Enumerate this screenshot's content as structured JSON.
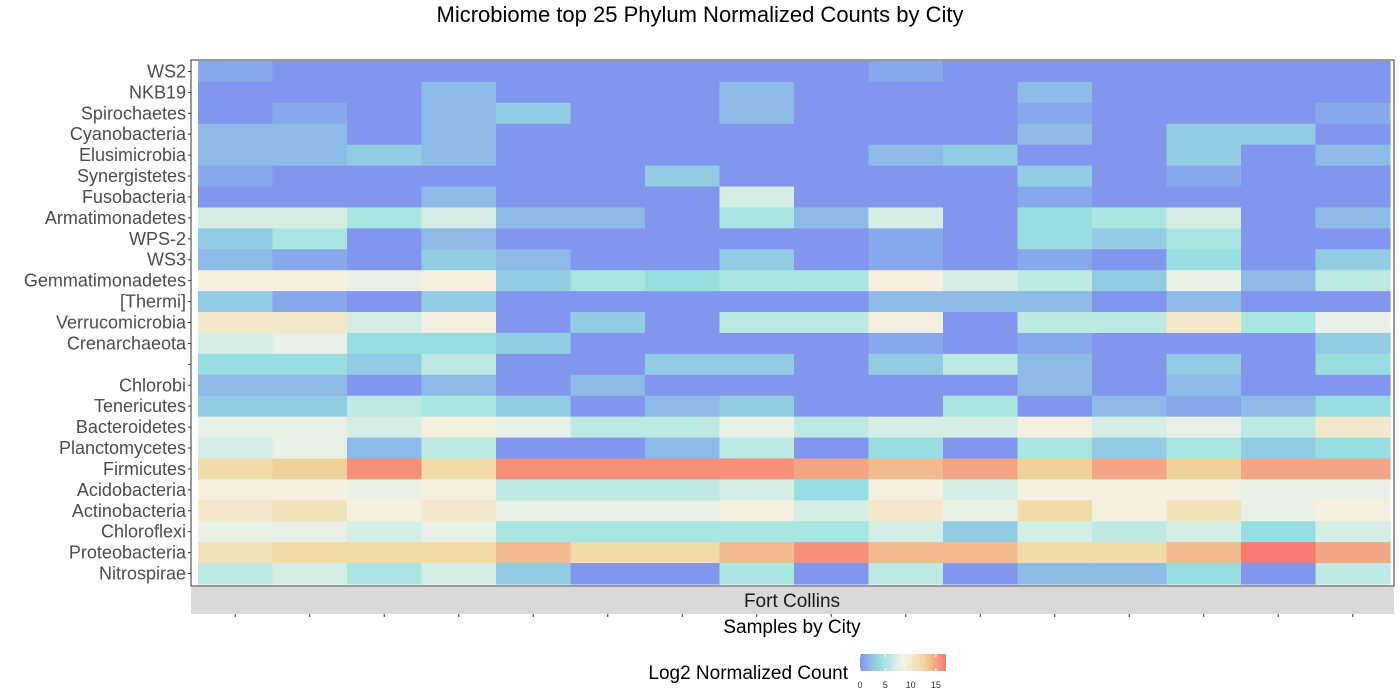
{
  "chart_data": {
    "type": "heatmap",
    "title": "Microbiome top 25 Phylum Normalized Counts by City",
    "xlabel": "Samples by City",
    "facet": "Fort Collins",
    "legend_title": "Log2 Normalized Count",
    "legend_ticks": [
      0,
      5,
      10,
      15
    ],
    "legend_placement": "bottom",
    "color_range": [
      0,
      17
    ],
    "colors": [
      "#8296ee",
      "#99e3df",
      "#f4f2e8",
      "#f0d69a",
      "#f87a72"
    ],
    "n_samples": 16,
    "rows": [
      {
        "label": "WS2",
        "values": [
          1,
          0,
          0,
          0,
          0,
          0,
          0,
          0,
          0,
          1,
          0,
          0,
          0,
          0,
          0,
          0
        ]
      },
      {
        "label": "NKB19",
        "values": [
          0,
          0,
          0,
          2,
          0,
          0,
          0,
          2,
          0,
          0,
          0,
          2,
          0,
          0,
          0,
          0
        ]
      },
      {
        "label": "Spirochaetes",
        "values": [
          0,
          1,
          0,
          2,
          3,
          0,
          0,
          2,
          0,
          0,
          0,
          1,
          0,
          0,
          0,
          1
        ]
      },
      {
        "label": "Cyanobacteria",
        "values": [
          2,
          2,
          0,
          2,
          0,
          0,
          0,
          0,
          0,
          0,
          0,
          2,
          0,
          3,
          3,
          0
        ]
      },
      {
        "label": "Elusimicrobia",
        "values": [
          2,
          2,
          3,
          2,
          0,
          0,
          0,
          0,
          0,
          2,
          3,
          0,
          0,
          3,
          0,
          2
        ]
      },
      {
        "label": "Synergistetes",
        "values": [
          1,
          0,
          0,
          0,
          0,
          0,
          3,
          0,
          0,
          0,
          0,
          3,
          0,
          1,
          0,
          0
        ]
      },
      {
        "label": "Fusobacteria",
        "values": [
          0,
          0,
          0,
          2,
          0,
          0,
          0,
          7,
          0,
          0,
          0,
          1,
          0,
          0,
          0,
          0
        ]
      },
      {
        "label": "Armatimonadetes",
        "values": [
          7,
          7,
          5,
          7,
          2,
          2,
          0,
          5,
          2,
          7,
          0,
          4,
          5,
          7,
          0,
          2
        ]
      },
      {
        "label": "WPS-2",
        "values": [
          3,
          5,
          0,
          2,
          0,
          0,
          0,
          0,
          0,
          1,
          0,
          4,
          3,
          5,
          0,
          0
        ]
      },
      {
        "label": "WS3",
        "values": [
          2,
          1,
          0,
          3,
          2,
          0,
          0,
          3,
          0,
          1,
          0,
          1,
          0,
          4,
          0,
          3
        ]
      },
      {
        "label": "Gemmatimonadetes",
        "values": [
          9,
          9,
          8,
          9,
          3,
          5,
          4,
          5,
          5,
          9,
          7,
          6,
          3,
          8,
          2,
          6
        ]
      },
      {
        "label": "[Thermi]",
        "values": [
          3,
          1,
          0,
          3,
          0,
          0,
          0,
          0,
          0,
          2,
          2,
          2,
          0,
          2,
          0,
          0
        ]
      },
      {
        "label": "Verrucomicrobia",
        "values": [
          10,
          10,
          7,
          9,
          0,
          3,
          0,
          6,
          6,
          9,
          0,
          6,
          6,
          10,
          5,
          8
        ]
      },
      {
        "label": "Crenarchaeota",
        "values": [
          7,
          8,
          4,
          4,
          3,
          0,
          0,
          0,
          0,
          1,
          0,
          1,
          0,
          0,
          0,
          3
        ]
      },
      {
        "label": "",
        "values": [
          4,
          4,
          3,
          6,
          0,
          0,
          3,
          3,
          0,
          3,
          6,
          2,
          0,
          3,
          0,
          4
        ]
      },
      {
        "label": "Chlorobi",
        "values": [
          2,
          2,
          0,
          2,
          0,
          2,
          0,
          0,
          0,
          0,
          0,
          2,
          0,
          2,
          0,
          0
        ]
      },
      {
        "label": "Tenericutes",
        "values": [
          3,
          3,
          6,
          5,
          3,
          0,
          2,
          3,
          0,
          0,
          5,
          0,
          2,
          1,
          2,
          4
        ]
      },
      {
        "label": "Bacteroidetes",
        "values": [
          8,
          8,
          7,
          9,
          8,
          6,
          6,
          8,
          6,
          7,
          7,
          9,
          7,
          8,
          6,
          10
        ]
      },
      {
        "label": "Planctomycetes",
        "values": [
          7,
          8,
          2,
          6,
          0,
          0,
          2,
          6,
          0,
          4,
          0,
          5,
          3,
          5,
          3,
          4
        ]
      },
      {
        "label": "Firmicutes",
        "values": [
          12,
          13,
          16,
          12,
          16,
          16,
          16,
          16,
          15,
          14,
          15,
          13,
          15,
          13,
          15,
          15
        ]
      },
      {
        "label": "Acidobacteria",
        "values": [
          9,
          9,
          8,
          9,
          6,
          6,
          6,
          7,
          4,
          9,
          7,
          9,
          9,
          9,
          8,
          8
        ]
      },
      {
        "label": "Actinobacteria",
        "values": [
          10,
          11,
          9,
          10,
          8,
          8,
          8,
          9,
          7,
          10,
          8,
          12,
          9,
          11,
          8,
          9
        ]
      },
      {
        "label": "Chloroflexi",
        "values": [
          8,
          8,
          7,
          8,
          5,
          5,
          5,
          5,
          5,
          7,
          3,
          7,
          6,
          7,
          4,
          7
        ]
      },
      {
        "label": "Proteobacteria",
        "values": [
          11,
          12,
          12,
          12,
          14,
          12,
          12,
          14,
          16,
          14,
          14,
          12,
          12,
          14,
          17,
          15
        ]
      },
      {
        "label": "Nitrospirae",
        "values": [
          6,
          7,
          5,
          7,
          3,
          0,
          0,
          5,
          0,
          6,
          0,
          2,
          2,
          4,
          0,
          6
        ]
      }
    ]
  }
}
